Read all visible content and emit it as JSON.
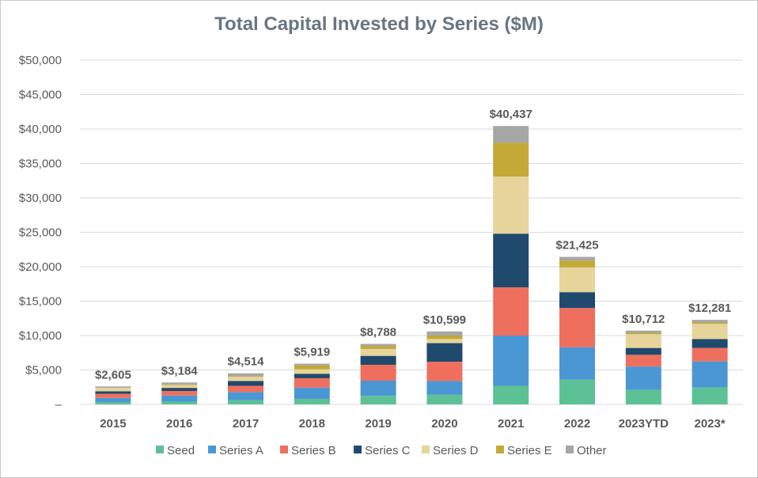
{
  "chart_data": {
    "type": "bar",
    "stacked": true,
    "title": "Total Capital Invested by Series ($M)",
    "xlabel": "",
    "ylabel": "",
    "ylim": [
      0,
      50000
    ],
    "y_ticks": [
      "–",
      "$5,000",
      "$10,000",
      "$15,000",
      "$20,000",
      "$25,000",
      "$30,000",
      "$35,000",
      "$40,000",
      "$45,000",
      "$50,000"
    ],
    "grid": true,
    "legend_position": "bottom",
    "categories": [
      "2015",
      "2016",
      "2017",
      "2018",
      "2019",
      "2020",
      "2021",
      "2022",
      "2023YTD",
      "2023*"
    ],
    "totals": [
      2605,
      3184,
      4514,
      5919,
      8788,
      10599,
      40437,
      21425,
      10712,
      12281
    ],
    "total_labels": [
      "$2,605",
      "$3,184",
      "$4,514",
      "$5,919",
      "$8,788",
      "$10,599",
      "$40,437",
      "$21,425",
      "$10,712",
      "$12,281"
    ],
    "series": [
      {
        "name": "Seed",
        "color": "#5cc194",
        "values": [
          300,
          400,
          600,
          800,
          1250,
          1400,
          2700,
          3600,
          2100,
          2450
        ]
      },
      {
        "name": "Series A",
        "color": "#4b97d4",
        "values": [
          650,
          900,
          1200,
          1650,
          2200,
          2000,
          7300,
          4700,
          3400,
          3800
        ]
      },
      {
        "name": "Series B",
        "color": "#ef6f5e",
        "values": [
          600,
          650,
          900,
          1350,
          2300,
          2800,
          7000,
          5700,
          1700,
          1950
        ]
      },
      {
        "name": "Series C",
        "color": "#1f4a6e",
        "values": [
          350,
          450,
          700,
          650,
          1300,
          2700,
          7800,
          2300,
          1000,
          1300
        ]
      },
      {
        "name": "Series D",
        "color": "#e6d49a",
        "values": [
          500,
          400,
          600,
          650,
          1000,
          600,
          8300,
          3600,
          2000,
          2200
        ]
      },
      {
        "name": "Series E",
        "color": "#c3a936",
        "values": [
          0,
          100,
          100,
          550,
          400,
          500,
          4900,
          1000,
          200,
          200
        ]
      },
      {
        "name": "Other",
        "color": "#a6a6a6",
        "values": [
          205,
          284,
          414,
          269,
          338,
          599,
          2437,
          525,
          312,
          381
        ]
      }
    ]
  }
}
